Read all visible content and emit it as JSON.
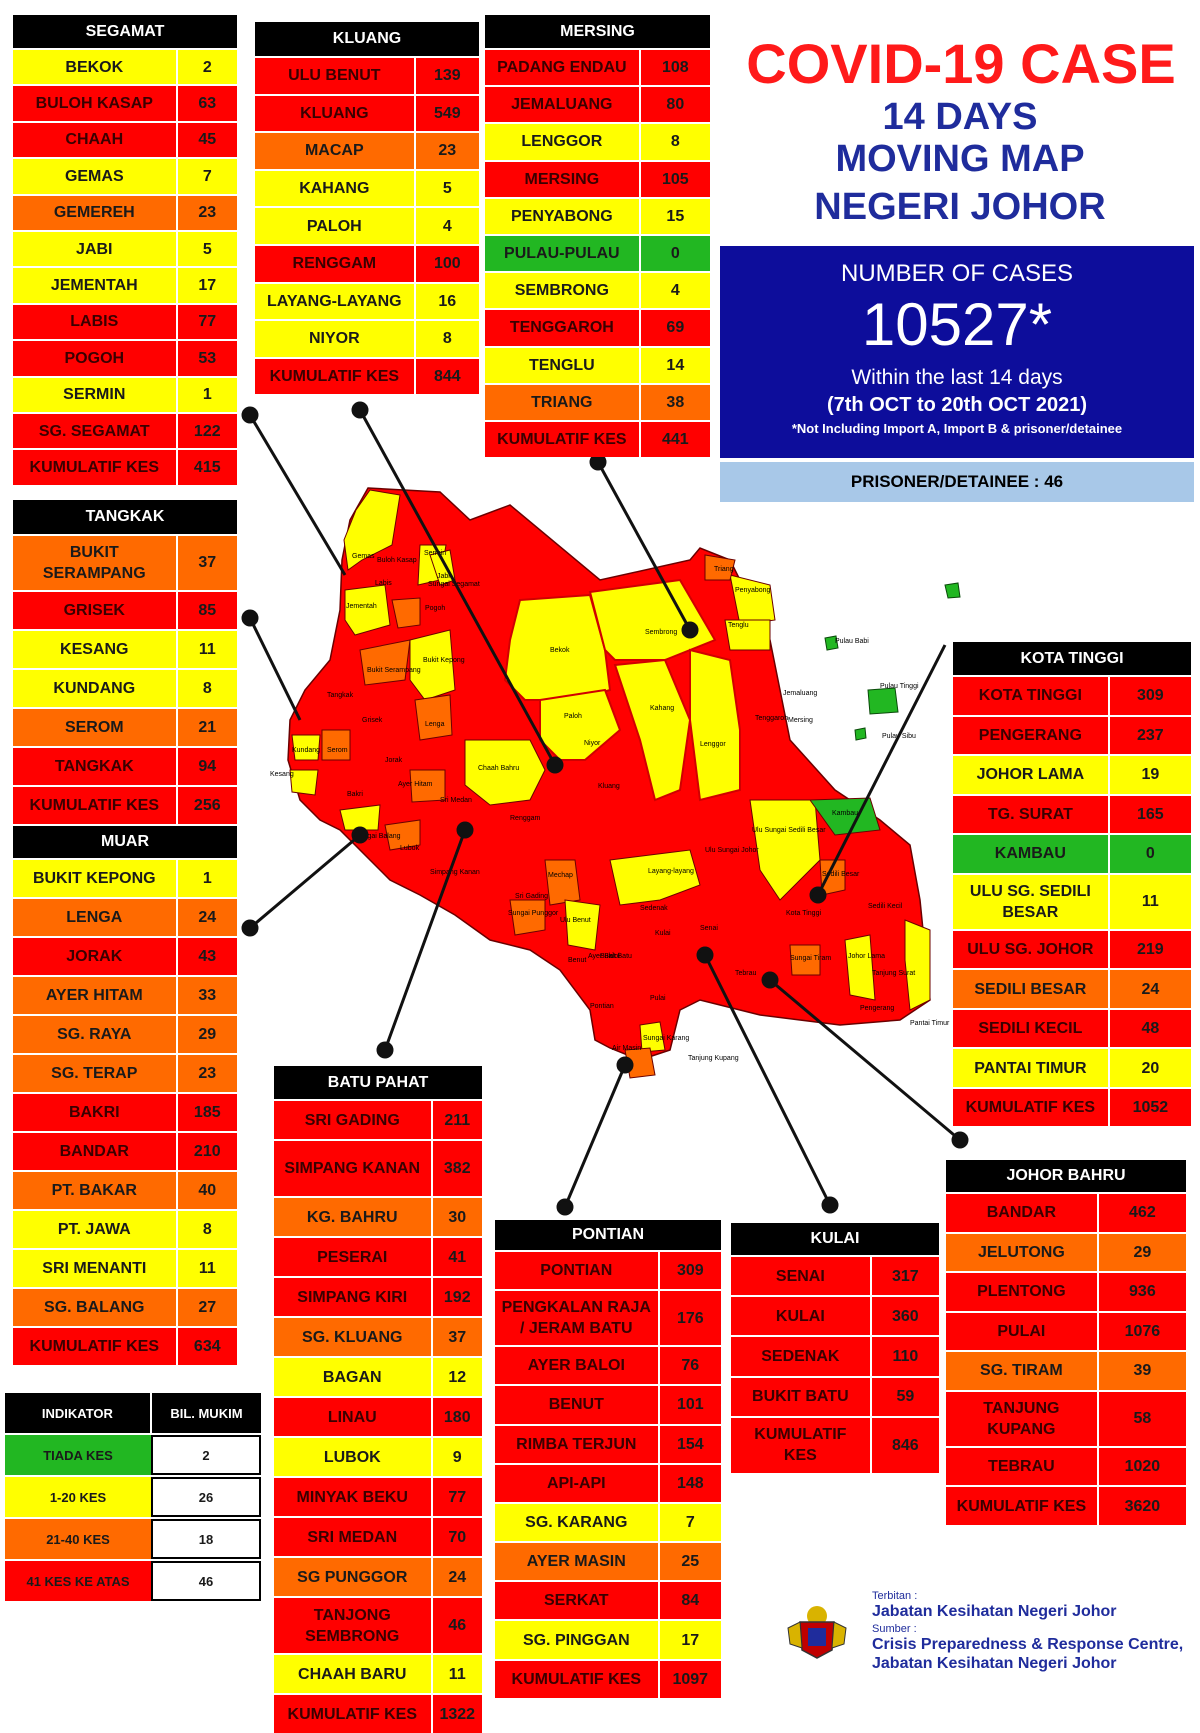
{
  "title": {
    "line1": "COVID-19 CASE",
    "line2": "14 DAYS",
    "line3": "MOVING MAP",
    "line4": "NEGERI JOHOR"
  },
  "summary": {
    "heading": "NUMBER OF CASES",
    "total": "10527*",
    "within": "Within the last 14 days",
    "period": "(7th OCT to 20th OCT 2021)",
    "note": "*Not Including Import A, Import B & prisoner/detainee",
    "prisoner": "PRISONER/DETAINEE : 46"
  },
  "colors": {
    "red": "#ff0000",
    "yellow": "#ffff00",
    "orange": "#ff6a00",
    "green": "#22b722",
    "title_red": "#ff1a1a",
    "title_blue": "#1f2c9c",
    "box_blue": "#0d0d9b",
    "prisoner_blue": "#a8c8e8"
  },
  "districts": [
    {
      "name": "SEGAMAT",
      "rows": [
        {
          "name": "BEKOK",
          "value": "2",
          "level": "yellow"
        },
        {
          "name": "BULOH KASAP",
          "value": "63",
          "level": "red"
        },
        {
          "name": "CHAAH",
          "value": "45",
          "level": "red"
        },
        {
          "name": "GEMAS",
          "value": "7",
          "level": "yellow"
        },
        {
          "name": "GEMEREH",
          "value": "23",
          "level": "orange"
        },
        {
          "name": "JABI",
          "value": "5",
          "level": "yellow"
        },
        {
          "name": "JEMENTAH",
          "value": "17",
          "level": "yellow"
        },
        {
          "name": "LABIS",
          "value": "77",
          "level": "red"
        },
        {
          "name": "POGOH",
          "value": "53",
          "level": "red"
        },
        {
          "name": "SERMIN",
          "value": "1",
          "level": "yellow"
        },
        {
          "name": "SG. SEGAMAT",
          "value": "122",
          "level": "red"
        },
        {
          "name": "KUMULATIF KES",
          "value": "415",
          "level": "red"
        }
      ]
    },
    {
      "name": "KLUANG",
      "rows": [
        {
          "name": "ULU BENUT",
          "value": "139",
          "level": "red"
        },
        {
          "name": "KLUANG",
          "value": "549",
          "level": "red"
        },
        {
          "name": "MACAP",
          "value": "23",
          "level": "orange"
        },
        {
          "name": "KAHANG",
          "value": "5",
          "level": "yellow"
        },
        {
          "name": "PALOH",
          "value": "4",
          "level": "yellow"
        },
        {
          "name": "RENGGAM",
          "value": "100",
          "level": "red"
        },
        {
          "name": "LAYANG-LAYANG",
          "value": "16",
          "level": "yellow"
        },
        {
          "name": "NIYOR",
          "value": "8",
          "level": "yellow"
        },
        {
          "name": "KUMULATIF KES",
          "value": "844",
          "level": "red"
        }
      ]
    },
    {
      "name": "MERSING",
      "rows": [
        {
          "name": "PADANG ENDAU",
          "value": "108",
          "level": "red"
        },
        {
          "name": "JEMALUANG",
          "value": "80",
          "level": "red"
        },
        {
          "name": "LENGGOR",
          "value": "8",
          "level": "yellow"
        },
        {
          "name": "MERSING",
          "value": "105",
          "level": "red"
        },
        {
          "name": "PENYABONG",
          "value": "15",
          "level": "yellow"
        },
        {
          "name": "PULAU-PULAU",
          "value": "0",
          "level": "green"
        },
        {
          "name": "SEMBRONG",
          "value": "4",
          "level": "yellow"
        },
        {
          "name": "TENGGAROH",
          "value": "69",
          "level": "red"
        },
        {
          "name": "TENGLU",
          "value": "14",
          "level": "yellow"
        },
        {
          "name": "TRIANG",
          "value": "38",
          "level": "orange"
        },
        {
          "name": "KUMULATIF KES",
          "value": "441",
          "level": "red"
        }
      ]
    },
    {
      "name": "TANGKAK",
      "rows": [
        {
          "name": "BUKIT SERAMPANG",
          "value": "37",
          "level": "orange"
        },
        {
          "name": "GRISEK",
          "value": "85",
          "level": "red"
        },
        {
          "name": "KESANG",
          "value": "11",
          "level": "yellow"
        },
        {
          "name": "KUNDANG",
          "value": "8",
          "level": "yellow"
        },
        {
          "name": "SEROM",
          "value": "21",
          "level": "orange"
        },
        {
          "name": "TANGKAK",
          "value": "94",
          "level": "red"
        },
        {
          "name": "KUMULATIF KES",
          "value": "256",
          "level": "red"
        }
      ]
    },
    {
      "name": "MUAR",
      "rows": [
        {
          "name": "BUKIT KEPONG",
          "value": "1",
          "level": "yellow"
        },
        {
          "name": "LENGA",
          "value": "24",
          "level": "orange"
        },
        {
          "name": "JORAK",
          "value": "43",
          "level": "red"
        },
        {
          "name": "AYER HITAM",
          "value": "33",
          "level": "orange"
        },
        {
          "name": "SG. RAYA",
          "value": "29",
          "level": "orange"
        },
        {
          "name": "SG. TERAP",
          "value": "23",
          "level": "orange"
        },
        {
          "name": "BAKRI",
          "value": "185",
          "level": "red"
        },
        {
          "name": "BANDAR",
          "value": "210",
          "level": "red"
        },
        {
          "name": "PT. BAKAR",
          "value": "40",
          "level": "orange"
        },
        {
          "name": "PT. JAWA",
          "value": "8",
          "level": "yellow"
        },
        {
          "name": "SRI MENANTI",
          "value": "11",
          "level": "yellow"
        },
        {
          "name": "SG. BALANG",
          "value": "27",
          "level": "orange"
        },
        {
          "name": "KUMULATIF KES",
          "value": "634",
          "level": "red"
        }
      ]
    },
    {
      "name": "BATU PAHAT",
      "rows": [
        {
          "name": "SRI GADING",
          "value": "211",
          "level": "red"
        },
        {
          "name": "SIMPANG KANAN",
          "value": "382",
          "level": "red"
        },
        {
          "name": "KG. BAHRU",
          "value": "30",
          "level": "orange"
        },
        {
          "name": "PESERAI",
          "value": "41",
          "level": "red"
        },
        {
          "name": "SIMPANG KIRI",
          "value": "192",
          "level": "red"
        },
        {
          "name": "SG. KLUANG",
          "value": "37",
          "level": "orange"
        },
        {
          "name": "BAGAN",
          "value": "12",
          "level": "yellow"
        },
        {
          "name": "LINAU",
          "value": "180",
          "level": "red"
        },
        {
          "name": "LUBOK",
          "value": "9",
          "level": "yellow"
        },
        {
          "name": "MINYAK BEKU",
          "value": "77",
          "level": "red"
        },
        {
          "name": "SRI MEDAN",
          "value": "70",
          "level": "red"
        },
        {
          "name": "SG PUNGGOR",
          "value": "24",
          "level": "orange"
        },
        {
          "name": "TANJONG SEMBRONG",
          "value": "46",
          "level": "red"
        },
        {
          "name": "CHAAH BARU",
          "value": "11",
          "level": "yellow"
        },
        {
          "name": "KUMULATIF KES",
          "value": "1322",
          "level": "red"
        }
      ]
    },
    {
      "name": "PONTIAN",
      "rows": [
        {
          "name": "PONTIAN",
          "value": "309",
          "level": "red"
        },
        {
          "name": "PENGKALAN RAJA / JERAM BATU",
          "value": "176",
          "level": "red"
        },
        {
          "name": "AYER BALOI",
          "value": "76",
          "level": "red"
        },
        {
          "name": "BENUT",
          "value": "101",
          "level": "red"
        },
        {
          "name": "RIMBA TERJUN",
          "value": "154",
          "level": "red"
        },
        {
          "name": "API-API",
          "value": "148",
          "level": "red"
        },
        {
          "name": "SG. KARANG",
          "value": "7",
          "level": "yellow"
        },
        {
          "name": "AYER MASIN",
          "value": "25",
          "level": "orange"
        },
        {
          "name": "SERKAT",
          "value": "84",
          "level": "red"
        },
        {
          "name": "SG. PINGGAN",
          "value": "17",
          "level": "yellow"
        },
        {
          "name": "KUMULATIF KES",
          "value": "1097",
          "level": "red"
        }
      ]
    },
    {
      "name": "KULAI",
      "rows": [
        {
          "name": "SENAI",
          "value": "317",
          "level": "red"
        },
        {
          "name": "KULAI",
          "value": "360",
          "level": "red"
        },
        {
          "name": "SEDENAK",
          "value": "110",
          "level": "red"
        },
        {
          "name": "BUKIT BATU",
          "value": "59",
          "level": "red"
        },
        {
          "name": "KUMULATIF KES",
          "value": "846",
          "level": "red"
        }
      ]
    },
    {
      "name": "KOTA TINGGI",
      "rows": [
        {
          "name": "KOTA TINGGI",
          "value": "309",
          "level": "red"
        },
        {
          "name": "PENGERANG",
          "value": "237",
          "level": "red"
        },
        {
          "name": "JOHOR LAMA",
          "value": "19",
          "level": "yellow"
        },
        {
          "name": "TG. SURAT",
          "value": "165",
          "level": "red"
        },
        {
          "name": "KAMBAU",
          "value": "0",
          "level": "green"
        },
        {
          "name": "ULU SG. SEDILI BESAR",
          "value": "11",
          "level": "yellow"
        },
        {
          "name": "ULU  SG. JOHOR",
          "value": "219",
          "level": "red"
        },
        {
          "name": "SEDILI BESAR",
          "value": "24",
          "level": "orange"
        },
        {
          "name": "SEDILI KECIL",
          "value": "48",
          "level": "red"
        },
        {
          "name": "PANTAI TIMUR",
          "value": "20",
          "level": "yellow"
        },
        {
          "name": "KUMULATIF KES",
          "value": "1052",
          "level": "red"
        }
      ]
    },
    {
      "name": "JOHOR BAHRU",
      "rows": [
        {
          "name": "BANDAR",
          "value": "462",
          "level": "red"
        },
        {
          "name": "JELUTONG",
          "value": "29",
          "level": "orange"
        },
        {
          "name": "PLENTONG",
          "value": "936",
          "level": "red"
        },
        {
          "name": "PULAI",
          "value": "1076",
          "level": "red"
        },
        {
          "name": "SG. TIRAM",
          "value": "39",
          "level": "orange"
        },
        {
          "name": "TANJUNG KUPANG",
          "value": "58",
          "level": "red"
        },
        {
          "name": "TEBRAU",
          "value": "1020",
          "level": "red"
        },
        {
          "name": "KUMULATIF KES",
          "value": "3620",
          "level": "red"
        }
      ]
    }
  ],
  "legend": {
    "col1": "INDIKATOR",
    "col2": "BIL. MUKIM",
    "rows": [
      {
        "name": "TIADA KES",
        "value": "2",
        "level": "green"
      },
      {
        "name": "1-20 KES",
        "value": "26",
        "level": "yellow"
      },
      {
        "name": "21-40 KES",
        "value": "18",
        "level": "orange"
      },
      {
        "name": "41 KES KE ATAS",
        "value": "46",
        "level": "red"
      }
    ]
  },
  "map_labels": [
    {
      "text": "Gemas"
    },
    {
      "text": "Buloh Kasap"
    },
    {
      "text": "Sermin"
    },
    {
      "text": "Labis"
    },
    {
      "text": "Jabi"
    },
    {
      "text": "Sungai Segamat"
    },
    {
      "text": "Jementah"
    },
    {
      "text": "Pogoh"
    },
    {
      "text": "Bekok"
    },
    {
      "text": "Sembrong"
    },
    {
      "text": "Triang"
    },
    {
      "text": "Penyabong"
    },
    {
      "text": "Tenglu"
    },
    {
      "text": "Pulau Babi"
    },
    {
      "text": "Pulau Tinggi"
    },
    {
      "text": "Pulau Sibu"
    },
    {
      "text": "Jemaluang"
    },
    {
      "text": "Mersing"
    },
    {
      "text": "Tenggaroh"
    },
    {
      "text": "Lenggor"
    },
    {
      "text": "Kahang"
    },
    {
      "text": "Paloh"
    },
    {
      "text": "Niyor"
    },
    {
      "text": "Chaah Bahru"
    },
    {
      "text": "Bukit Kepong"
    },
    {
      "text": "Bukit Serampang"
    },
    {
      "text": "Tangkak"
    },
    {
      "text": "Grisek"
    },
    {
      "text": "Lenga"
    },
    {
      "text": "Kundang"
    },
    {
      "text": "Serom"
    },
    {
      "text": "Kesang"
    },
    {
      "text": "Jorak"
    },
    {
      "text": "Bakri"
    },
    {
      "text": "Ayer Hitam"
    },
    {
      "text": "Sri Medan"
    },
    {
      "text": "Kluang"
    },
    {
      "text": "Renggam"
    },
    {
      "text": "Layang-layang"
    },
    {
      "text": "Ulu Sungai Sedili Besar"
    },
    {
      "text": "Kambau"
    },
    {
      "text": "Ulu Sungai Johor"
    },
    {
      "text": "Kota Tinggi"
    },
    {
      "text": "Sedili Besar"
    },
    {
      "text": "Sedili Kecil"
    },
    {
      "text": "Johor Lama"
    },
    {
      "text": "Tanjung Surat"
    },
    {
      "text": "Pantai Timur"
    },
    {
      "text": "Pengerang"
    },
    {
      "text": "Tebrau"
    },
    {
      "text": "Sungai Tiram"
    },
    {
      "text": "Sedenak"
    },
    {
      "text": "Senai"
    },
    {
      "text": "Kulai"
    },
    {
      "text": "Bukit Batu"
    },
    {
      "text": "Pontian"
    },
    {
      "text": "Air Masin"
    },
    {
      "text": "Sungai Karang"
    },
    {
      "text": "Tanjung Kupang"
    },
    {
      "text": "Sungai Balang"
    },
    {
      "text": "Lubok"
    },
    {
      "text": "Sri Gading"
    },
    {
      "text": "Simpang Kanan"
    },
    {
      "text": "Sungai Punggor"
    },
    {
      "text": "Mechap"
    },
    {
      "text": "Ulu Benut"
    },
    {
      "text": "Benut"
    },
    {
      "text": "Ayer Baloi"
    },
    {
      "text": "Pulai"
    }
  ],
  "credits": {
    "terbitan_label": "Terbitan :",
    "terbitan": "Jabatan Kesihatan Negeri Johor",
    "sumber_label": "Sumber :",
    "sumber1": "Crisis Preparedness & Response Centre,",
    "sumber2": "Jabatan Kesihatan Negeri Johor"
  }
}
